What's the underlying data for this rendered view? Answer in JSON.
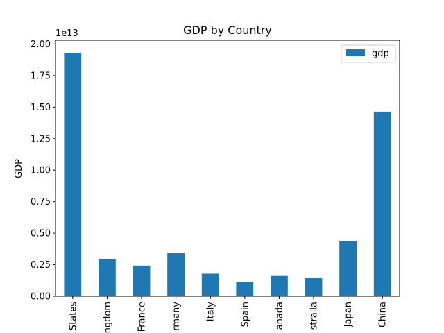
{
  "chart_data": {
    "type": "bar",
    "title": "GDP by Country",
    "xlabel": "",
    "ylabel": "GDP",
    "offset_label": "1e13",
    "categories": [
      "States",
      "ngdom",
      "France",
      "rmany",
      "Italy",
      "Spain",
      "anada",
      "stralia",
      "Japan",
      "China"
    ],
    "series": [
      {
        "name": "gdp",
        "color": "#1f77b4",
        "values": [
          19300000000000.0,
          2950000000000.0,
          2430000000000.0,
          3420000000000.0,
          1790000000000.0,
          1140000000000.0,
          1610000000000.0,
          1480000000000.0,
          4400000000000.0,
          14640000000000.0
        ]
      }
    ],
    "ylim": [
      0,
      20300000000000.0
    ],
    "yticks": [
      {
        "value": 0,
        "label": "0.00"
      },
      {
        "value": 2500000000000.0,
        "label": "0.25"
      },
      {
        "value": 5000000000000.0,
        "label": "0.50"
      },
      {
        "value": 7500000000000.0,
        "label": "0.75"
      },
      {
        "value": 10000000000000.0,
        "label": "1.00"
      },
      {
        "value": 12500000000000.0,
        "label": "1.25"
      },
      {
        "value": 15000000000000.0,
        "label": "1.50"
      },
      {
        "value": 17500000000000.0,
        "label": "1.75"
      },
      {
        "value": 20000000000000.0,
        "label": "2.00"
      }
    ],
    "grid": false,
    "legend_position": "top-right"
  }
}
